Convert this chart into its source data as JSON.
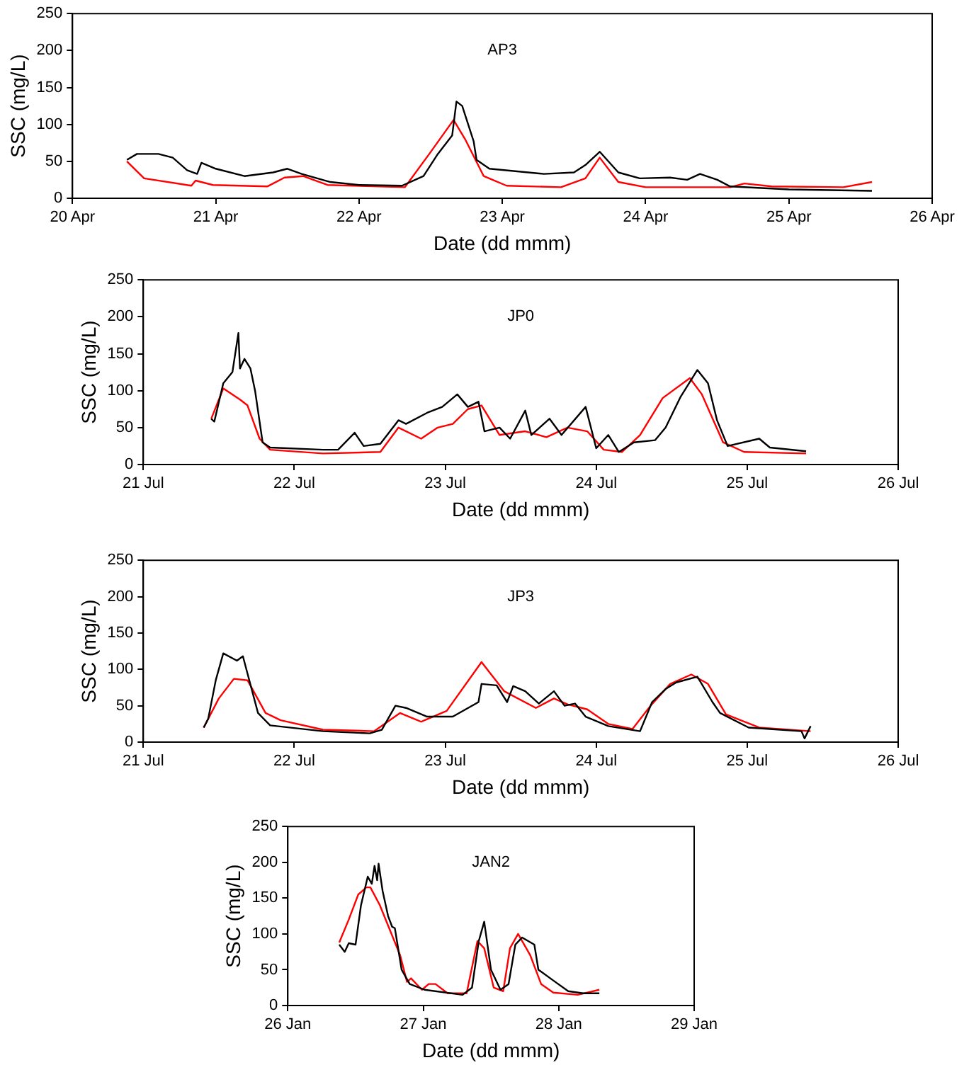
{
  "chart_data": [
    {
      "type": "line",
      "title": "AP3",
      "xlabel": "Date (dd mmm)",
      "ylabel": "SSC (mg/L)",
      "grid": false,
      "marker": "none",
      "xlim": [
        "--04-20",
        "--04-26"
      ],
      "xticks": [
        {
          "value": "--04-20",
          "label": "20 Apr"
        },
        {
          "value": "--04-21",
          "label": "21 Apr"
        },
        {
          "value": "--04-22",
          "label": "22 Apr"
        },
        {
          "value": "--04-23",
          "label": "23 Apr"
        },
        {
          "value": "--04-24",
          "label": "24 Apr"
        },
        {
          "value": "--04-25",
          "label": "25 Apr"
        },
        {
          "value": "--04-26",
          "label": "26 Apr"
        }
      ],
      "ylim": [
        0,
        250
      ],
      "yticks": [
        0,
        50,
        100,
        150,
        200,
        250
      ],
      "series": [
        {
          "color": "#000000",
          "x": [
            "--04-20T09:07",
            "--04-20T10:48",
            "--04-20T14:24",
            "--04-20T16:48",
            "--04-20T19:12",
            "--04-20T20:53",
            "--04-20T21:36",
            "--04-21T00:00",
            "--04-21T04:48",
            "--04-21T09:36",
            "--04-21T12:00",
            "--04-21T14:24",
            "--04-21T19:12",
            "--04-22T00:00",
            "--04-22T07:12",
            "--04-22T10:48",
            "--04-22T13:12",
            "--04-22T15:36",
            "--04-22T16:19",
            "--04-22T17:17",
            "--04-22T19:12",
            "--04-22T19:41",
            "--04-22T21:50",
            "--04-23T06:58",
            "--04-23T12:00",
            "--04-23T13:55",
            "--04-23T16:19",
            "--04-23T19:26",
            "--04-23T23:02",
            "--04-24T04:05",
            "--04-24T06:58",
            "--04-24T09:07",
            "--04-24T12:00",
            "--04-24T14:10",
            "--04-25T00:00",
            "--04-25T13:55"
          ],
          "values": [
            52,
            60,
            60,
            55,
            38,
            33,
            48,
            40,
            30,
            35,
            40,
            33,
            22,
            18,
            17,
            30,
            60,
            85,
            131,
            125,
            77,
            52,
            40,
            33,
            35,
            45,
            63,
            35,
            27,
            28,
            25,
            33,
            25,
            16,
            12,
            10
          ]
        },
        {
          "color": "#ff0000",
          "x": [
            "--04-20T09:07",
            "--04-20T12:00",
            "--04-20T19:55",
            "--04-20T20:38",
            "--04-20T23:31",
            "--04-21T08:38",
            "--04-21T11:31",
            "--04-21T14:38",
            "--04-21T18:43",
            "--04-22T07:41",
            "--04-22T11:46",
            "--04-22T15:50",
            "--04-22T17:46",
            "--04-22T20:53",
            "--04-23T00:43",
            "--04-23T09:50",
            "--04-23T13:55",
            "--04-23T16:19",
            "--04-23T19:26",
            "--04-24T00:00",
            "--04-24T14:10",
            "--04-24T16:34",
            "--04-24T21:07",
            "--04-25T09:07",
            "--04-25T13:55"
          ],
          "values": [
            50,
            27,
            17,
            24,
            18,
            16,
            28,
            30,
            18,
            15,
            60,
            106,
            80,
            30,
            17,
            15,
            27,
            55,
            22,
            15,
            15,
            20,
            16,
            15,
            22
          ]
        }
      ]
    },
    {
      "type": "line",
      "title": "JP0",
      "xlabel": "Date (dd mmm)",
      "ylabel": "SSC (mg/L)",
      "grid": false,
      "marker": "none",
      "xlim": [
        "--07-21",
        "--07-26"
      ],
      "xticks": [
        {
          "value": "--07-21",
          "label": "21 Jul"
        },
        {
          "value": "--07-22",
          "label": "22 Jul"
        },
        {
          "value": "--07-23",
          "label": "23 Jul"
        },
        {
          "value": "--07-24",
          "label": "24 Jul"
        },
        {
          "value": "--07-25",
          "label": "25 Jul"
        },
        {
          "value": "--07-26",
          "label": "26 Jul"
        }
      ],
      "ylim": [
        0,
        250
      ],
      "yticks": [
        0,
        50,
        100,
        150,
        200,
        250
      ],
      "series": [
        {
          "color": "#000000",
          "x": [
            "--07-21T10:48",
            "--07-21T11:17",
            "--07-21T12:43",
            "--07-21T14:10",
            "--07-21T15:07",
            "--07-21T15:22",
            "--07-21T16:05",
            "--07-21T17:02",
            "--07-21T17:46",
            "--07-21T18:58",
            "--07-21T20:10",
            "--07-22T04:34",
            "--07-22T06:58",
            "--07-22T09:36",
            "--07-22T11:02",
            "--07-22T13:41",
            "--07-22T16:34",
            "--07-22T17:46",
            "--07-22T21:07",
            "--07-22T23:31",
            "--07-23T01:55",
            "--07-23T03:36",
            "--07-23T05:17",
            "--07-23T06:14",
            "--07-23T08:38",
            "--07-23T10:19",
            "--07-23T12:43",
            "--07-23T13:41",
            "--07-23T16:34",
            "--07-23T18:29",
            "--07-23T22:19",
            "--07-24T00:00",
            "--07-24T01:55",
            "--07-24T03:36",
            "--07-24T06:00",
            "--07-24T09:22",
            "--07-24T11:02",
            "--07-24T13:26",
            "--07-24T16:05",
            "--07-24T17:46",
            "--07-24T19:12",
            "--07-24T20:53",
            "--07-25T01:55",
            "--07-25T03:36",
            "--07-25T09:22"
          ],
          "values": [
            62,
            58,
            110,
            125,
            178,
            130,
            143,
            130,
            100,
            30,
            23,
            20,
            20,
            43,
            25,
            28,
            60,
            55,
            70,
            78,
            95,
            78,
            85,
            45,
            50,
            35,
            73,
            40,
            62,
            40,
            78,
            22,
            40,
            17,
            30,
            33,
            50,
            92,
            128,
            110,
            60,
            25,
            35,
            23,
            18
          ]
        },
        {
          "color": "#ff0000",
          "x": [
            "--07-21T10:48",
            "--07-21T12:43",
            "--07-21T15:22",
            "--07-21T16:34",
            "--07-21T18:29",
            "--07-21T20:10",
            "--07-22T04:34",
            "--07-22T13:41",
            "--07-22T16:34",
            "--07-22T20:10",
            "--07-22T22:48",
            "--07-23T01:12",
            "--07-23T03:36",
            "--07-23T05:46",
            "--07-23T08:38",
            "--07-23T12:43",
            "--07-23T16:05",
            "--07-23T19:26",
            "--07-23T22:34",
            "--07-24T01:12",
            "--07-24T04:05",
            "--07-24T06:58",
            "--07-24T10:34",
            "--07-24T14:53",
            "--07-24T16:48",
            "--07-24T20:10",
            "--07-24T23:31",
            "--07-25T09:22"
          ],
          "values": [
            62,
            103,
            88,
            80,
            35,
            20,
            15,
            17,
            50,
            35,
            50,
            55,
            75,
            80,
            40,
            45,
            37,
            50,
            45,
            20,
            17,
            40,
            90,
            117,
            95,
            30,
            17,
            15
          ]
        }
      ]
    },
    {
      "type": "line",
      "title": "JP3",
      "xlabel": "Date (dd mmm)",
      "ylabel": "SSC (mg/L)",
      "grid": false,
      "marker": "none",
      "xlim": [
        "--07-21",
        "--07-26"
      ],
      "xticks": [
        {
          "value": "--07-21",
          "label": "21 Jul"
        },
        {
          "value": "--07-22",
          "label": "22 Jul"
        },
        {
          "value": "--07-23",
          "label": "23 Jul"
        },
        {
          "value": "--07-24",
          "label": "24 Jul"
        },
        {
          "value": "--07-25",
          "label": "25 Jul"
        },
        {
          "value": "--07-26",
          "label": "26 Jul"
        }
      ],
      "ylim": [
        0,
        250
      ],
      "yticks": [
        0,
        50,
        100,
        150,
        200,
        250
      ],
      "series": [
        {
          "color": "#000000",
          "x": [
            "--07-21T09:36",
            "--07-21T10:19",
            "--07-21T11:31",
            "--07-21T12:43",
            "--07-21T14:53",
            "--07-21T15:50",
            "--07-21T18:14",
            "--07-21T20:10",
            "--07-22T04:34",
            "--07-22T12:00",
            "--07-22T13:55",
            "--07-22T16:05",
            "--07-22T17:46",
            "--07-22T21:07",
            "--07-23T01:12",
            "--07-23T05:17",
            "--07-23T05:46",
            "--07-23T08:10",
            "--07-23T09:50",
            "--07-23T10:48",
            "--07-23T12:43",
            "--07-23T14:53",
            "--07-23T17:17",
            "--07-23T18:58",
            "--07-23T20:38",
            "--07-23T22:19",
            "--07-24T01:55",
            "--07-24T06:58",
            "--07-24T08:53",
            "--07-24T11:02",
            "--07-24T12:43",
            "--07-24T16:05",
            "--07-24T18:29",
            "--07-24T19:41",
            "--07-25T00:14",
            "--07-25T08:38",
            "--07-25T09:07",
            "--07-25T10:05"
          ],
          "values": [
            20,
            32,
            85,
            122,
            112,
            118,
            40,
            23,
            15,
            12,
            17,
            50,
            47,
            35,
            35,
            55,
            80,
            78,
            55,
            77,
            70,
            53,
            70,
            50,
            53,
            35,
            22,
            15,
            55,
            73,
            82,
            90,
            55,
            40,
            20,
            15,
            5,
            22
          ]
        },
        {
          "color": "#ff0000",
          "x": [
            "--07-21T09:36",
            "--07-21T12:00",
            "--07-21T14:24",
            "--07-21T16:34",
            "--07-21T19:26",
            "--07-21T21:50",
            "--07-22T04:34",
            "--07-22T12:43",
            "--07-22T16:48",
            "--07-22T20:10",
            "--07-23T00:14",
            "--07-23T05:46",
            "--07-23T09:22",
            "--07-23T14:24",
            "--07-23T17:17",
            "--07-23T19:26",
            "--07-23T22:34",
            "--07-24T01:55",
            "--07-24T05:46",
            "--07-24T08:38",
            "--07-24T11:46",
            "--07-24T15:07",
            "--07-24T17:46",
            "--07-24T20:38",
            "--07-25T01:55",
            "--07-25T10:05"
          ],
          "values": [
            20,
            60,
            87,
            85,
            40,
            30,
            17,
            15,
            40,
            28,
            43,
            110,
            70,
            47,
            60,
            52,
            45,
            25,
            18,
            50,
            80,
            93,
            80,
            38,
            20,
            15
          ]
        }
      ]
    },
    {
      "type": "line",
      "title": "JAN2",
      "xlabel": "Date (dd mmm)",
      "ylabel": "SSC (mg/L)",
      "grid": false,
      "marker": "none",
      "xlim": [
        "--01-26",
        "--01-29"
      ],
      "xticks": [
        {
          "value": "--01-26",
          "label": "26 Jan"
        },
        {
          "value": "--01-27",
          "label": "27 Jan"
        },
        {
          "value": "--01-28",
          "label": "28 Jan"
        },
        {
          "value": "--01-29",
          "label": "29 Jan"
        }
      ],
      "ylim": [
        0,
        250
      ],
      "yticks": [
        0,
        50,
        100,
        150,
        200,
        250
      ],
      "series": [
        {
          "color": "#000000",
          "x": [
            "--01-26T09:07",
            "--01-26T10:05",
            "--01-26T10:48",
            "--01-26T12:00",
            "--01-26T12:58",
            "--01-26T14:10",
            "--01-26T14:53",
            "--01-26T15:22",
            "--01-26T15:50",
            "--01-26T16:05",
            "--01-26T16:48",
            "--01-26T17:46",
            "--01-26T18:29",
            "--01-26T18:58",
            "--01-26T20:10",
            "--01-26T21:36",
            "--01-27T00:14",
            "--01-27T06:58",
            "--01-27T08:38",
            "--01-27T09:50",
            "--01-27T10:48",
            "--01-27T12:00",
            "--01-27T13:41",
            "--01-27T15:07",
            "--01-27T16:19",
            "--01-27T17:31",
            "--01-27T19:41",
            "--01-27T20:24",
            "--01-27T23:02",
            "--01-28T01:41",
            "--01-28T04:19",
            "--01-28T07:12"
          ],
          "values": [
            85,
            75,
            87,
            85,
            140,
            180,
            170,
            195,
            175,
            198,
            160,
            125,
            110,
            108,
            50,
            30,
            22,
            15,
            25,
            90,
            117,
            50,
            22,
            30,
            85,
            95,
            85,
            50,
            35,
            20,
            17,
            17
          ]
        },
        {
          "color": "#ff0000",
          "x": [
            "--01-26T09:07",
            "--01-26T10:48",
            "--01-26T12:29",
            "--01-26T13:55",
            "--01-26T14:38",
            "--01-26T16:19",
            "--01-26T19:55",
            "--01-26T21:07",
            "--01-26T21:50",
            "--01-26T23:46",
            "--01-27T00:58",
            "--01-27T02:10",
            "--01-27T04:19",
            "--01-27T07:41",
            "--01-27T09:36",
            "--01-27T10:48",
            "--01-27T12:29",
            "--01-27T14:10",
            "--01-27T15:22",
            "--01-27T16:48",
            "--01-27T18:58",
            "--01-27T20:53",
            "--01-27T23:02",
            "--01-28T03:22",
            "--01-28T07:12"
          ],
          "values": [
            88,
            120,
            155,
            165,
            165,
            140,
            70,
            33,
            38,
            22,
            30,
            30,
            17,
            17,
            90,
            80,
            25,
            20,
            80,
            100,
            70,
            30,
            18,
            15,
            22
          ]
        }
      ]
    }
  ]
}
